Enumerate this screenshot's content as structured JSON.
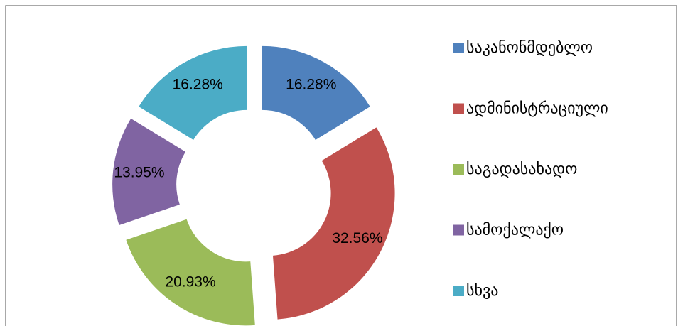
{
  "chart_data": {
    "type": "donut",
    "categories": [
      "საკანონმდებლო",
      "ადმინისტრაციული",
      "საგადასახადო",
      "სამოქალაქო",
      "სხვა"
    ],
    "values": [
      16.28,
      32.56,
      20.93,
      13.95,
      16.28
    ],
    "value_labels": [
      "16.28%",
      "32.56%",
      "20.93%",
      "13.95%",
      "16.28%"
    ],
    "colors": [
      "#4f81bd",
      "#c0504d",
      "#9bbb59",
      "#8064a2",
      "#4bacc6"
    ],
    "legend": "right"
  }
}
